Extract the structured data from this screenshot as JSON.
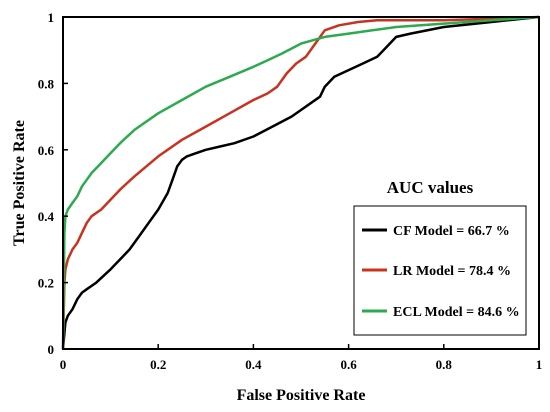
{
  "chart_data": {
    "type": "line",
    "xlabel": "False Positive Rate",
    "ylabel": "True Positive Rate",
    "xlim": [
      0,
      1
    ],
    "ylim": [
      0,
      1
    ],
    "x_ticks": [
      "0",
      "0.2",
      "0.4",
      "0.6",
      "0.8",
      "1"
    ],
    "y_ticks": [
      "0",
      "0.2",
      "0.4",
      "0.6",
      "0.8",
      "1"
    ],
    "grid": false,
    "legend": {
      "title": "AUC values",
      "position": "lower-right"
    },
    "series": [
      {
        "name": "CF Model = 66.7 %",
        "color": "#000000",
        "x": [
          0,
          0.005,
          0.01,
          0.02,
          0.03,
          0.04,
          0.05,
          0.07,
          0.1,
          0.12,
          0.14,
          0.16,
          0.18,
          0.2,
          0.22,
          0.23,
          0.24,
          0.25,
          0.26,
          0.28,
          0.3,
          0.33,
          0.36,
          0.4,
          0.44,
          0.48,
          0.5,
          0.52,
          0.54,
          0.55,
          0.57,
          0.6,
          0.63,
          0.66,
          0.68,
          0.7,
          0.73,
          0.8,
          0.9,
          1.0
        ],
        "y": [
          0,
          0.08,
          0.1,
          0.12,
          0.15,
          0.17,
          0.18,
          0.2,
          0.24,
          0.27,
          0.3,
          0.34,
          0.38,
          0.42,
          0.47,
          0.51,
          0.55,
          0.57,
          0.58,
          0.59,
          0.6,
          0.61,
          0.62,
          0.64,
          0.67,
          0.7,
          0.72,
          0.74,
          0.76,
          0.79,
          0.82,
          0.84,
          0.86,
          0.88,
          0.91,
          0.94,
          0.95,
          0.97,
          0.985,
          1.0
        ]
      },
      {
        "name": "LR Model = 78.4 %",
        "color": "#c8321e",
        "x": [
          0,
          0.003,
          0.005,
          0.01,
          0.02,
          0.03,
          0.04,
          0.05,
          0.06,
          0.08,
          0.1,
          0.12,
          0.15,
          0.2,
          0.25,
          0.3,
          0.35,
          0.4,
          0.43,
          0.45,
          0.47,
          0.49,
          0.51,
          0.53,
          0.55,
          0.58,
          0.62,
          0.66,
          0.7,
          0.8,
          0.9,
          1.0
        ],
        "y": [
          0,
          0.2,
          0.24,
          0.27,
          0.3,
          0.32,
          0.35,
          0.38,
          0.4,
          0.42,
          0.45,
          0.48,
          0.52,
          0.58,
          0.63,
          0.67,
          0.71,
          0.75,
          0.77,
          0.79,
          0.83,
          0.86,
          0.88,
          0.92,
          0.96,
          0.975,
          0.985,
          0.99,
          0.99,
          0.99,
          0.995,
          1.0
        ]
      },
      {
        "name": "ECL Model = 84.6 %",
        "color": "#2daa50",
        "x": [
          0,
          0.003,
          0.005,
          0.01,
          0.02,
          0.03,
          0.04,
          0.05,
          0.06,
          0.08,
          0.1,
          0.12,
          0.15,
          0.2,
          0.25,
          0.3,
          0.35,
          0.4,
          0.43,
          0.46,
          0.5,
          0.55,
          0.6,
          0.65,
          0.7,
          0.8,
          0.9,
          1.0
        ],
        "y": [
          0,
          0.35,
          0.4,
          0.42,
          0.44,
          0.46,
          0.49,
          0.51,
          0.53,
          0.56,
          0.59,
          0.62,
          0.66,
          0.71,
          0.75,
          0.79,
          0.82,
          0.85,
          0.87,
          0.89,
          0.92,
          0.94,
          0.95,
          0.96,
          0.97,
          0.98,
          0.99,
          1.0
        ]
      }
    ]
  }
}
